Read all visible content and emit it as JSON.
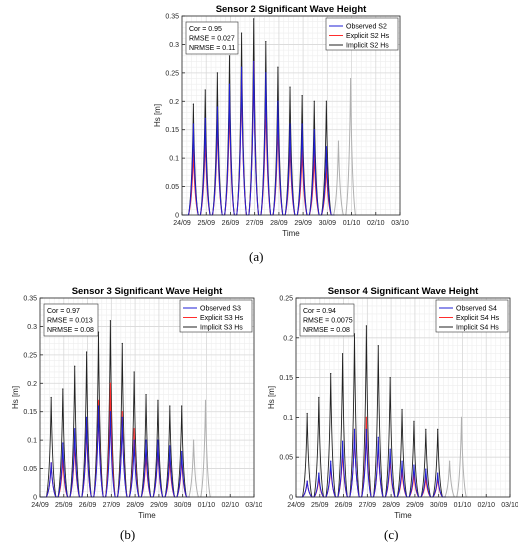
{
  "chart_data": [
    {
      "type": "line",
      "title": "Sensor 2 Significant Wave Height",
      "xlabel": "Time",
      "ylabel": "Hs [m]",
      "ylim": [
        0,
        0.35
      ],
      "yticks": [
        "0",
        "0.05",
        "0.1",
        "0.15",
        "0.2",
        "0.25",
        "0.3",
        "0.35"
      ],
      "xlim": [
        "24/09",
        "03/10"
      ],
      "xticks": [
        "24/09",
        "25/09",
        "26/09",
        "27/09",
        "28/09",
        "29/09",
        "30/09",
        "01/10",
        "02/10",
        "03/10"
      ],
      "grid": true,
      "legend_position": "top-right",
      "stats": [
        "Cor = 0.95",
        "RMSE = 0.027",
        "NRMSE = 0.11"
      ],
      "colors": {
        "observed": "#1f1fd6",
        "explicit": "#ff2d2d",
        "implicit": "#222222",
        "forecast": "#b0b0b0"
      },
      "series": [
        {
          "name": "Observed S2",
          "kind": "observed",
          "peak_days": [
            0.47,
            0.96,
            1.46,
            1.96,
            2.46,
            2.96,
            3.46,
            3.96,
            4.46,
            4.96,
            5.46,
            5.96
          ],
          "peaks": [
            0.16,
            0.17,
            0.19,
            0.23,
            0.26,
            0.27,
            0.25,
            0.2,
            0.16,
            0.16,
            0.15,
            0.12
          ]
        },
        {
          "name": "Explicit S2 Hs",
          "kind": "explicit",
          "peak_days": [
            0.47,
            0.96,
            1.46,
            1.96,
            2.46,
            2.96,
            3.46,
            3.96,
            4.46,
            4.96,
            5.46,
            5.96
          ],
          "peaks": [
            0.115,
            0.14,
            0.17,
            0.2,
            0.25,
            0.27,
            0.21,
            0.17,
            0.13,
            0.12,
            0.11,
            0.09
          ]
        },
        {
          "name": "Implicit S2 Hs",
          "kind": "implicit",
          "peak_days": [
            0.47,
            0.96,
            1.46,
            1.96,
            2.46,
            2.96,
            3.46,
            3.96,
            4.46,
            4.96,
            5.46,
            5.96
          ],
          "peaks": [
            0.195,
            0.22,
            0.25,
            0.28,
            0.32,
            0.345,
            0.305,
            0.26,
            0.225,
            0.21,
            0.2,
            0.2
          ]
        },
        {
          "kind": "forecast",
          "peak_days": [
            6.46,
            6.96
          ],
          "peaks": [
            0.13,
            0.24
          ]
        }
      ]
    },
    {
      "type": "line",
      "title": "Sensor 3 Significant Wave Height",
      "xlabel": "Time",
      "ylabel": "Hs [m]",
      "ylim": [
        0,
        0.35
      ],
      "yticks": [
        "0",
        "0.05",
        "0.1",
        "0.15",
        "0.2",
        "0.25",
        "0.3",
        "0.35"
      ],
      "xlim": [
        "24/09",
        "03/10"
      ],
      "xticks": [
        "24/09",
        "25/09",
        "26/09",
        "27/09",
        "28/09",
        "29/09",
        "30/09",
        "01/10",
        "02/10",
        "03/10"
      ],
      "grid": true,
      "legend_position": "top-right",
      "stats": [
        "Cor = 0.97",
        "RMSE = 0.013",
        "NRMSE = 0.08"
      ],
      "colors": {
        "observed": "#1f1fd6",
        "explicit": "#ff2d2d",
        "implicit": "#222222",
        "forecast": "#b0b0b0"
      },
      "series": [
        {
          "name": "Observed S3",
          "kind": "observed",
          "peak_days": [
            0.47,
            0.96,
            1.46,
            1.96,
            2.46,
            2.96,
            3.46,
            3.96,
            4.46,
            4.96,
            5.46,
            5.96
          ],
          "peaks": [
            0.06,
            0.095,
            0.12,
            0.14,
            0.16,
            0.15,
            0.14,
            0.1,
            0.1,
            0.1,
            0.09,
            0.08
          ]
        },
        {
          "name": "Explicit S3 Hs",
          "kind": "explicit",
          "peak_days": [
            0.47,
            0.96,
            1.46,
            1.96,
            2.46,
            2.96,
            3.46,
            3.96,
            4.46,
            4.96,
            5.46,
            5.96
          ],
          "peaks": [
            0.06,
            0.07,
            0.1,
            0.13,
            0.17,
            0.2,
            0.15,
            0.12,
            0.08,
            0.09,
            0.07,
            0.07
          ]
        },
        {
          "name": "Implicit S3 Hs",
          "kind": "implicit",
          "peak_days": [
            0.47,
            0.96,
            1.46,
            1.96,
            2.46,
            2.96,
            3.46,
            3.96,
            4.46,
            4.96,
            5.46,
            5.96
          ],
          "peaks": [
            0.175,
            0.19,
            0.23,
            0.255,
            0.29,
            0.31,
            0.27,
            0.22,
            0.18,
            0.17,
            0.16,
            0.16
          ]
        },
        {
          "kind": "forecast",
          "peak_days": [
            6.46,
            6.96
          ],
          "peaks": [
            0.1,
            0.17
          ]
        }
      ]
    },
    {
      "type": "line",
      "title": "Sensor 4 Significant Wave Height",
      "xlabel": "Time",
      "ylabel": "Hs [m]",
      "ylim": [
        0,
        0.25
      ],
      "yticks": [
        "0",
        "0.05",
        "0.1",
        "0.15",
        "0.2",
        "0.25"
      ],
      "xlim": [
        "24/09",
        "03/10"
      ],
      "xticks": [
        "24/09",
        "25/09",
        "26/09",
        "27/09",
        "28/09",
        "29/09",
        "30/09",
        "01/10",
        "02/10",
        "03/10"
      ],
      "grid": true,
      "legend_position": "top-right",
      "stats": [
        "Cor = 0.94",
        "RMSE = 0.0075",
        "NRMSE = 0.08"
      ],
      "colors": {
        "observed": "#1f1fd6",
        "explicit": "#ff2d2d",
        "implicit": "#222222",
        "forecast": "#b0b0b0"
      },
      "series": [
        {
          "name": "Observed S4",
          "kind": "observed",
          "peak_days": [
            0.47,
            0.96,
            1.46,
            1.96,
            2.46,
            2.96,
            3.46,
            3.96,
            4.46,
            4.96,
            5.46,
            5.96
          ],
          "peaks": [
            0.02,
            0.03,
            0.045,
            0.07,
            0.085,
            0.085,
            0.075,
            0.06,
            0.045,
            0.04,
            0.035,
            0.03
          ]
        },
        {
          "name": "Explicit S4 Hs",
          "kind": "explicit",
          "peak_days": [
            0.47,
            0.96,
            1.46,
            1.96,
            2.46,
            2.96,
            3.46,
            3.96,
            4.46,
            4.96,
            5.46,
            5.96
          ],
          "peaks": [
            0.02,
            0.025,
            0.04,
            0.06,
            0.085,
            0.1,
            0.07,
            0.05,
            0.035,
            0.03,
            0.025,
            0.025
          ]
        },
        {
          "name": "Implicit S4 Hs",
          "kind": "implicit",
          "peak_days": [
            0.47,
            0.96,
            1.46,
            1.96,
            2.46,
            2.96,
            3.46,
            3.96,
            4.46,
            4.96,
            5.46,
            5.96
          ],
          "peaks": [
            0.105,
            0.125,
            0.155,
            0.18,
            0.205,
            0.215,
            0.19,
            0.15,
            0.11,
            0.095,
            0.085,
            0.085
          ]
        },
        {
          "kind": "forecast",
          "peak_days": [
            6.46,
            6.96
          ],
          "peaks": [
            0.045,
            0.1
          ]
        }
      ]
    }
  ],
  "sublabels": [
    "(a)",
    "(b)",
    "(c)"
  ]
}
